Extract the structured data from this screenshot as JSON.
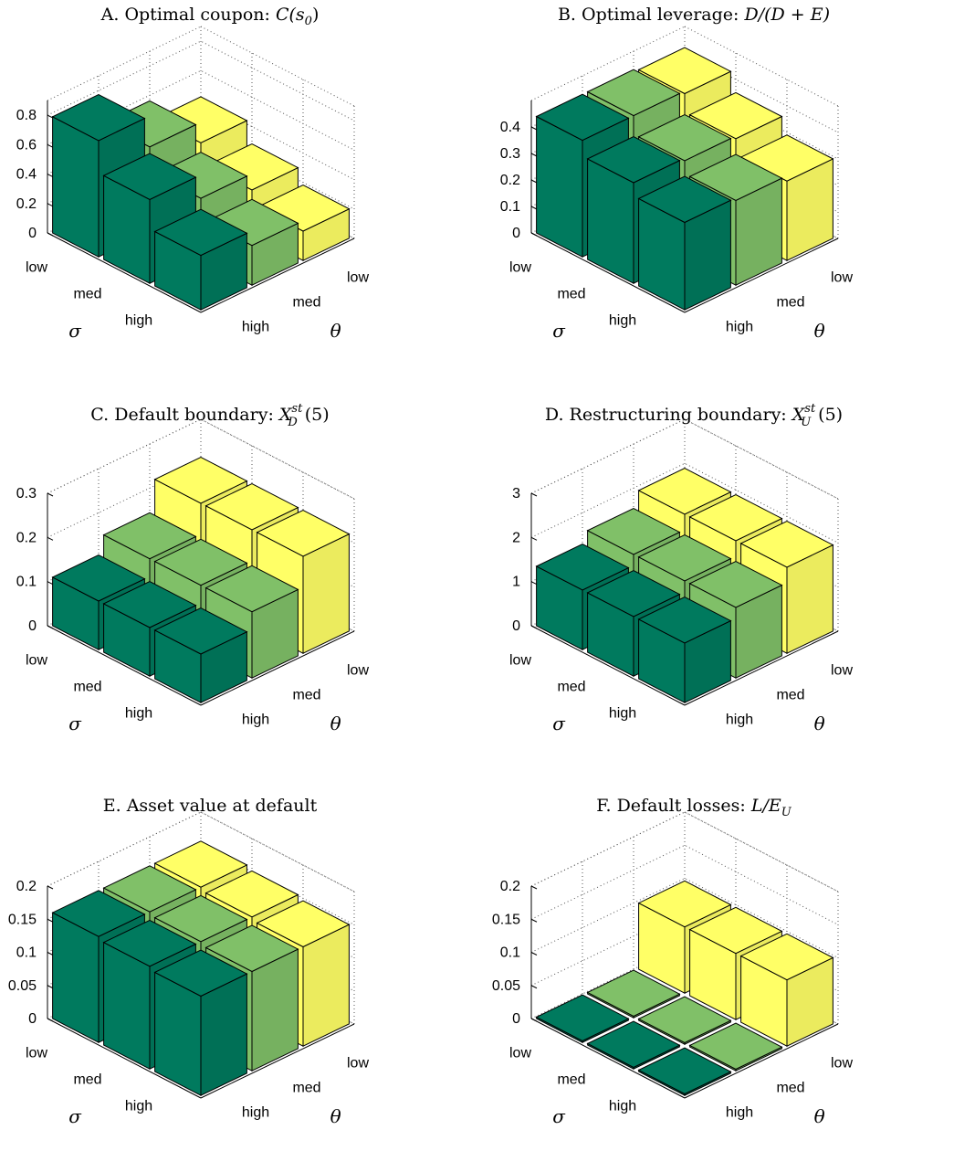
{
  "colors": {
    "dark_green": "#007a5e",
    "light_green": "#80c068",
    "yellow": "#ffff66"
  },
  "chart_data": [
    {
      "type": "bar3d",
      "panel": "A",
      "title": "A.  Optimal coupon: C(s0)",
      "title_prefix": "A.  Optimal coupon: ",
      "title_math": "C(s",
      "title_sub": "0",
      "title_suffix": ")",
      "xlabel": "σ",
      "ylabel": "θ",
      "sigma_categories": [
        "low",
        "med",
        "high"
      ],
      "theta_categories": [
        "low",
        "med",
        "high"
      ],
      "zlim": [
        0,
        0.9
      ],
      "zticks": [
        "0",
        "0.2",
        "0.4",
        "0.6",
        "0.8"
      ],
      "zticks_values": [
        0,
        0.2,
        0.4,
        0.6,
        0.8
      ],
      "series": [
        {
          "theta": "high",
          "color": "#007a5e",
          "values": [
            0.79,
            0.57,
            0.37
          ]
        },
        {
          "theta": "med",
          "color": "#80c068",
          "values": [
            0.58,
            0.41,
            0.27
          ]
        },
        {
          "theta": "low",
          "color": "#ffff66",
          "values": [
            0.44,
            0.3,
            0.2
          ]
        }
      ]
    },
    {
      "type": "bar3d",
      "panel": "B",
      "title": "B.  Optimal leverage: D/(D + E)",
      "title_prefix": "B.  Optimal leverage: ",
      "title_math": "D/(D + E)",
      "title_sub": "",
      "title_suffix": "",
      "xlabel": "σ",
      "ylabel": "θ",
      "sigma_categories": [
        "low",
        "med",
        "high"
      ],
      "theta_categories": [
        "low",
        "med",
        "high"
      ],
      "zlim": [
        0,
        0.5
      ],
      "zticks": [
        "0",
        "0.1",
        "0.2",
        "0.3",
        "0.4"
      ],
      "zticks_values": [
        0,
        0.1,
        0.2,
        0.3,
        0.4
      ],
      "series": [
        {
          "theta": "high",
          "color": "#007a5e",
          "values": [
            0.44,
            0.38,
            0.33
          ]
        },
        {
          "theta": "med",
          "color": "#80c068",
          "values": [
            0.44,
            0.37,
            0.32
          ]
        },
        {
          "theta": "low",
          "color": "#ffff66",
          "values": [
            0.43,
            0.36,
            0.3
          ]
        }
      ]
    },
    {
      "type": "bar3d",
      "panel": "C",
      "title": "C.  Default boundary: X_D^{s_t}(5)",
      "title_prefix": "C.  Default boundary: ",
      "title_math": "X",
      "title_sub": "D",
      "title_sup": "s_t",
      "title_suffix": "(5)",
      "xlabel": "σ",
      "ylabel": "θ",
      "sigma_categories": [
        "low",
        "med",
        "high"
      ],
      "theta_categories": [
        "low",
        "med",
        "high"
      ],
      "zlim": [
        0,
        0.3
      ],
      "zticks": [
        "0",
        "0.1",
        "0.2",
        "0.3"
      ],
      "zticks_values": [
        0,
        0.1,
        0.2,
        0.3
      ],
      "series": [
        {
          "theta": "high",
          "color": "#007a5e",
          "values": [
            0.11,
            0.11,
            0.11
          ]
        },
        {
          "theta": "med",
          "color": "#80c068",
          "values": [
            0.15,
            0.15,
            0.15
          ]
        },
        {
          "theta": "low",
          "color": "#ffff66",
          "values": [
            0.22,
            0.22,
            0.22
          ]
        }
      ]
    },
    {
      "type": "bar3d",
      "panel": "D",
      "title": "D.  Restructuring boundary: X_U^{s_t}(5)",
      "title_prefix": "D.  Restructuring boundary: ",
      "title_math": "X",
      "title_sub": "U",
      "title_sup": "s_t",
      "title_suffix": "(5)",
      "xlabel": "σ",
      "ylabel": "θ",
      "sigma_categories": [
        "low",
        "med",
        "high"
      ],
      "theta_categories": [
        "low",
        "med",
        "high"
      ],
      "zlim": [
        0,
        3
      ],
      "zticks": [
        "0",
        "1",
        "2",
        "3"
      ],
      "zticks_values": [
        0,
        1,
        2,
        3
      ],
      "series": [
        {
          "theta": "high",
          "color": "#007a5e",
          "values": [
            1.35,
            1.35,
            1.35
          ]
        },
        {
          "theta": "med",
          "color": "#80c068",
          "values": [
            1.6,
            1.6,
            1.6
          ]
        },
        {
          "theta": "low",
          "color": "#ffff66",
          "values": [
            1.95,
            1.95,
            1.95
          ]
        }
      ]
    },
    {
      "type": "bar3d",
      "panel": "E",
      "title": "E.  Asset value at default",
      "title_prefix": "E.  Asset value at default",
      "title_math": "",
      "title_sub": "",
      "title_suffix": "",
      "xlabel": "σ",
      "ylabel": "θ",
      "sigma_categories": [
        "low",
        "med",
        "high"
      ],
      "theta_categories": [
        "low",
        "med",
        "high"
      ],
      "zlim": [
        0,
        0.2
      ],
      "zticks": [
        "0",
        "0.05",
        "0.1",
        "0.15",
        "0.2"
      ],
      "zticks_values": [
        0,
        0.05,
        0.1,
        0.15,
        0.2
      ],
      "series": [
        {
          "theta": "high",
          "color": "#007a5e",
          "values": [
            0.16,
            0.155,
            0.15
          ]
        },
        {
          "theta": "med",
          "color": "#80c068",
          "values": [
            0.16,
            0.155,
            0.15
          ]
        },
        {
          "theta": "low",
          "color": "#ffff66",
          "values": [
            0.16,
            0.155,
            0.15
          ]
        }
      ]
    },
    {
      "type": "bar3d",
      "panel": "F",
      "title": "F.  Default losses: L/E_U",
      "title_prefix": "F.  Default losses: ",
      "title_math": "L/E",
      "title_sub": "U",
      "title_suffix": "",
      "xlabel": "σ",
      "ylabel": "θ",
      "sigma_categories": [
        "low",
        "med",
        "high"
      ],
      "theta_categories": [
        "low",
        "med",
        "high"
      ],
      "zlim": [
        0,
        0.2
      ],
      "zticks": [
        "0",
        "0.05",
        "0.1",
        "0.15",
        "0.2"
      ],
      "zticks_values": [
        0,
        0.05,
        0.1,
        0.15,
        0.2
      ],
      "series": [
        {
          "theta": "high",
          "color": "#007a5e",
          "values": [
            0.0,
            0.0,
            0.0
          ]
        },
        {
          "theta": "med",
          "color": "#80c068",
          "values": [
            0.0,
            0.0,
            0.0
          ]
        },
        {
          "theta": "low",
          "color": "#ffff66",
          "values": [
            0.1,
            0.1,
            0.1
          ]
        }
      ]
    }
  ]
}
